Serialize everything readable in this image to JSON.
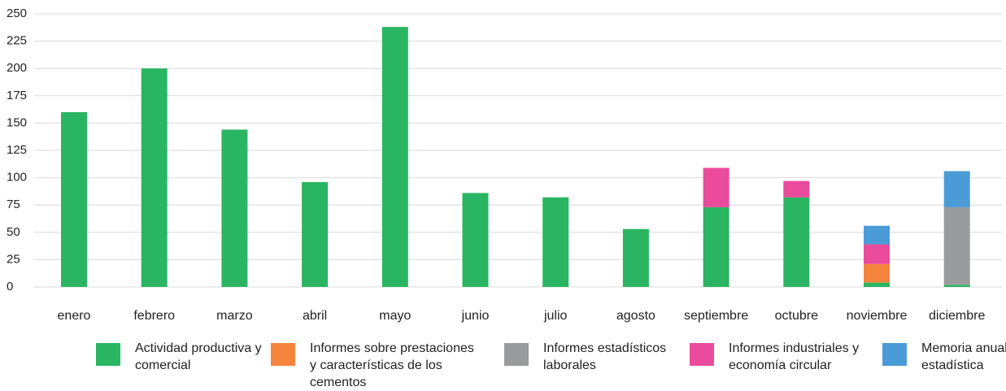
{
  "chart_data": {
    "type": "bar",
    "stacked": true,
    "title": "",
    "xlabel": "",
    "ylabel": "",
    "ylim": [
      0,
      250
    ],
    "yticks": [
      0,
      25,
      50,
      75,
      100,
      125,
      150,
      175,
      200,
      225,
      250
    ],
    "grid": true,
    "legend_position": "bottom",
    "categories": [
      "enero",
      "febrero",
      "marzo",
      "abril",
      "mayo",
      "junio",
      "julio",
      "agosto",
      "septiembre",
      "octubre",
      "noviembre",
      "diciembre"
    ],
    "series": [
      {
        "name": "Actividad productiva y comercial",
        "color": "#2ab562",
        "values": [
          160,
          200,
          144,
          96,
          238,
          86,
          82,
          53,
          73,
          82,
          4,
          2
        ]
      },
      {
        "name": "Informes sobre prestaciones y características de los cementos",
        "color": "#f5843d",
        "values": [
          0,
          0,
          0,
          0,
          0,
          0,
          0,
          0,
          0,
          0,
          17,
          0
        ]
      },
      {
        "name": "Informes estadísticos laborales",
        "color": "#9a9b9d",
        "values": [
          0,
          0,
          0,
          0,
          0,
          0,
          0,
          0,
          0,
          0,
          0,
          71
        ]
      },
      {
        "name": "Informes industriales y economía circular",
        "color": "#ea4b9c",
        "values": [
          0,
          0,
          0,
          0,
          0,
          0,
          0,
          0,
          36,
          15,
          18,
          0
        ]
      },
      {
        "name": "Memoria anual estadística",
        "color": "#4b9bd7",
        "values": [
          0,
          0,
          0,
          0,
          0,
          0,
          0,
          0,
          0,
          0,
          17,
          33
        ]
      }
    ]
  }
}
